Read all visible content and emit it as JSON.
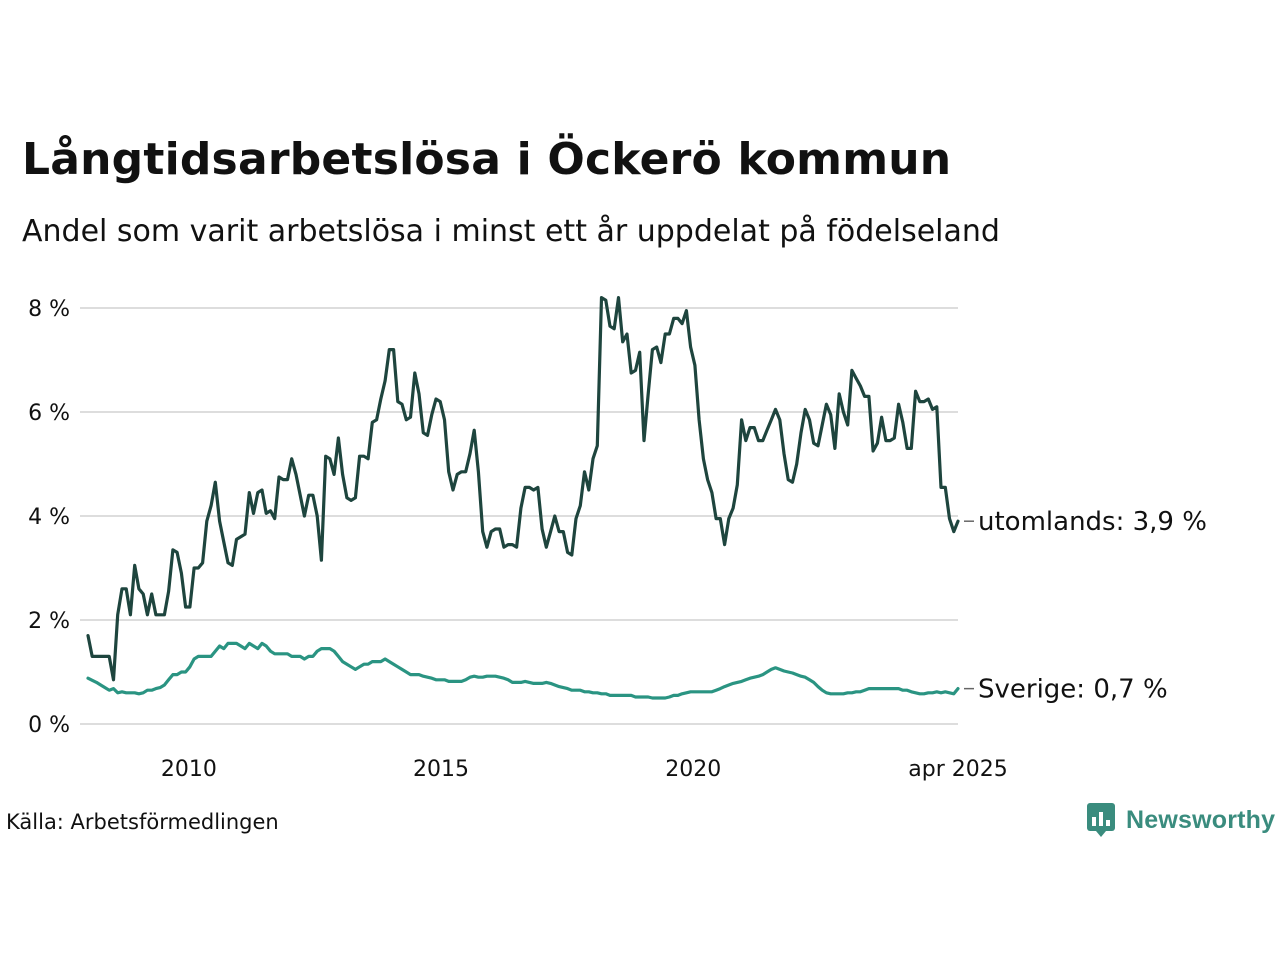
{
  "title": "Långtidsarbetslösa i Öckerö kommun",
  "subtitle": "Andel som varit arbetslösa i minst ett år uppdelat på födelseland",
  "source": "Källa: Arbetsförmedlingen",
  "brand": {
    "name": "Newsworthy",
    "color": "#3a8c7e"
  },
  "chart_data": {
    "type": "line",
    "title": "Långtidsarbetslösa i Öckerö kommun",
    "subtitle": "Andel som varit arbetslösa i minst ett år uppdelat på födelseland",
    "x_start": "2008-01",
    "x_end": "2025-04",
    "x_ticks": [
      "2010",
      "2015",
      "2020",
      "apr 2025"
    ],
    "y_ticks": [
      "0 %",
      "2 %",
      "4 %",
      "6 %",
      "8 %"
    ],
    "ylim": [
      0,
      8.3
    ],
    "grid": true,
    "legend": "end-labels",
    "series": [
      {
        "name": "utomlands",
        "end_label": "utomlands: 3,9 %",
        "color": "#1e453e",
        "values": [
          1.7,
          1.3,
          1.3,
          1.3,
          1.3,
          1.3,
          0.85,
          2.1,
          2.6,
          2.6,
          2.1,
          3.05,
          2.6,
          2.5,
          2.1,
          2.5,
          2.1,
          2.1,
          2.1,
          2.55,
          3.35,
          3.3,
          2.9,
          2.25,
          2.25,
          3.0,
          3.0,
          3.1,
          3.9,
          4.2,
          4.65,
          3.9,
          3.5,
          3.1,
          3.05,
          3.55,
          3.6,
          3.65,
          4.45,
          4.05,
          4.45,
          4.5,
          4.05,
          4.1,
          3.95,
          4.75,
          4.7,
          4.7,
          5.1,
          4.8,
          4.4,
          4.0,
          4.4,
          4.4,
          4.0,
          3.15,
          5.15,
          5.1,
          4.8,
          5.5,
          4.8,
          4.35,
          4.3,
          4.35,
          5.15,
          5.15,
          5.1,
          5.8,
          5.85,
          6.25,
          6.6,
          7.2,
          7.2,
          6.2,
          6.15,
          5.85,
          5.9,
          6.75,
          6.35,
          5.6,
          5.55,
          5.95,
          6.25,
          6.2,
          5.85,
          4.85,
          4.5,
          4.8,
          4.85,
          4.85,
          5.2,
          5.65,
          4.85,
          3.7,
          3.4,
          3.7,
          3.75,
          3.75,
          3.4,
          3.45,
          3.45,
          3.4,
          4.15,
          4.55,
          4.55,
          4.5,
          4.55,
          3.75,
          3.4,
          3.7,
          4.0,
          3.7,
          3.7,
          3.3,
          3.25,
          3.95,
          4.2,
          4.85,
          4.5,
          5.1,
          5.35,
          8.2,
          8.15,
          7.65,
          7.6,
          8.2,
          7.35,
          7.5,
          6.75,
          6.8,
          7.15,
          5.45,
          6.35,
          7.2,
          7.25,
          6.95,
          7.5,
          7.5,
          7.8,
          7.8,
          7.7,
          7.95,
          7.25,
          6.9,
          5.85,
          5.1,
          4.7,
          4.45,
          3.95,
          3.95,
          3.45,
          3.95,
          4.15,
          4.6,
          5.85,
          5.45,
          5.7,
          5.7,
          5.45,
          5.45,
          5.65,
          5.85,
          6.05,
          5.85,
          5.2,
          4.7,
          4.65,
          5.0,
          5.6,
          6.05,
          5.85,
          5.4,
          5.35,
          5.75,
          6.15,
          5.95,
          5.3,
          6.35,
          6.0,
          5.75,
          6.8,
          6.65,
          6.5,
          6.3,
          6.3,
          5.25,
          5.4,
          5.9,
          5.45,
          5.45,
          5.5,
          6.15,
          5.8,
          5.3,
          5.3,
          6.4,
          6.2,
          6.2,
          6.25,
          6.05,
          6.1,
          4.55,
          4.55,
          3.95,
          3.7,
          3.9
        ]
      },
      {
        "name": "Sverige",
        "end_label": "Sverige: 0,7 %",
        "color": "#2a9482",
        "values": [
          0.88,
          0.84,
          0.8,
          0.75,
          0.7,
          0.65,
          0.68,
          0.6,
          0.62,
          0.6,
          0.6,
          0.6,
          0.58,
          0.6,
          0.65,
          0.65,
          0.68,
          0.7,
          0.75,
          0.85,
          0.95,
          0.95,
          1.0,
          1.0,
          1.1,
          1.25,
          1.3,
          1.3,
          1.3,
          1.3,
          1.4,
          1.5,
          1.45,
          1.55,
          1.55,
          1.55,
          1.5,
          1.45,
          1.55,
          1.5,
          1.45,
          1.55,
          1.5,
          1.4,
          1.35,
          1.35,
          1.35,
          1.35,
          1.3,
          1.3,
          1.3,
          1.25,
          1.3,
          1.3,
          1.4,
          1.45,
          1.45,
          1.45,
          1.4,
          1.3,
          1.2,
          1.15,
          1.1,
          1.05,
          1.1,
          1.15,
          1.15,
          1.2,
          1.2,
          1.2,
          1.25,
          1.2,
          1.15,
          1.1,
          1.05,
          1.0,
          0.95,
          0.95,
          0.95,
          0.92,
          0.9,
          0.88,
          0.85,
          0.85,
          0.85,
          0.82,
          0.82,
          0.82,
          0.82,
          0.85,
          0.9,
          0.92,
          0.9,
          0.9,
          0.92,
          0.92,
          0.92,
          0.9,
          0.88,
          0.85,
          0.8,
          0.8,
          0.8,
          0.82,
          0.8,
          0.78,
          0.78,
          0.78,
          0.8,
          0.78,
          0.75,
          0.72,
          0.7,
          0.68,
          0.65,
          0.65,
          0.65,
          0.62,
          0.62,
          0.6,
          0.6,
          0.58,
          0.58,
          0.55,
          0.55,
          0.55,
          0.55,
          0.55,
          0.55,
          0.52,
          0.52,
          0.52,
          0.52,
          0.5,
          0.5,
          0.5,
          0.5,
          0.52,
          0.55,
          0.55,
          0.58,
          0.6,
          0.62,
          0.62,
          0.62,
          0.62,
          0.62,
          0.62,
          0.65,
          0.68,
          0.72,
          0.75,
          0.78,
          0.8,
          0.82,
          0.85,
          0.88,
          0.9,
          0.92,
          0.95,
          1.0,
          1.05,
          1.08,
          1.05,
          1.02,
          1.0,
          0.98,
          0.95,
          0.92,
          0.9,
          0.85,
          0.8,
          0.72,
          0.65,
          0.6,
          0.58,
          0.58,
          0.58,
          0.58,
          0.6,
          0.6,
          0.62,
          0.62,
          0.65,
          0.68,
          0.68,
          0.68,
          0.68,
          0.68,
          0.68,
          0.68,
          0.68,
          0.65,
          0.65,
          0.62,
          0.6,
          0.58,
          0.58,
          0.6,
          0.6,
          0.62,
          0.6,
          0.62,
          0.6,
          0.58,
          0.68
        ]
      }
    ]
  }
}
